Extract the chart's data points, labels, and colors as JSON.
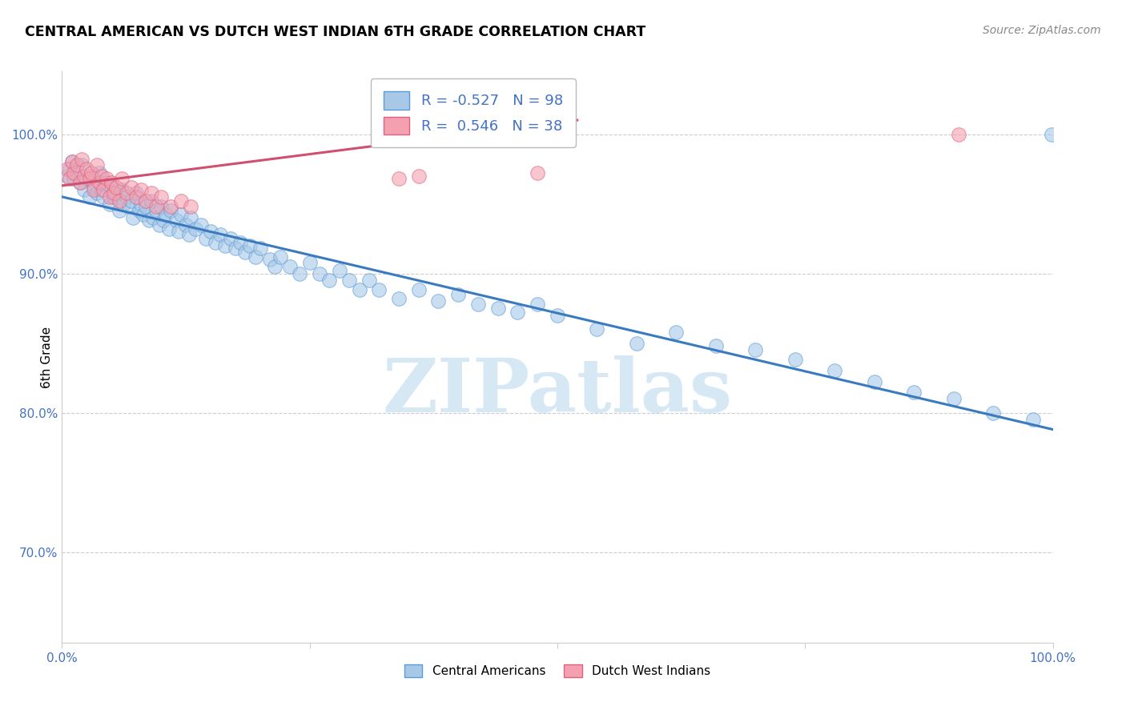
{
  "title": "CENTRAL AMERICAN VS DUTCH WEST INDIAN 6TH GRADE CORRELATION CHART",
  "source": "Source: ZipAtlas.com",
  "ylabel": "6th Grade",
  "y_ticks": [
    0.7,
    0.8,
    0.9,
    1.0
  ],
  "y_tick_labels": [
    "70.0%",
    "80.0%",
    "90.0%",
    "100.0%"
  ],
  "x_range": [
    0.0,
    1.0
  ],
  "y_range": [
    0.635,
    1.045
  ],
  "blue_r": "-0.527",
  "blue_n": "98",
  "pink_r": "0.546",
  "pink_n": "38",
  "blue_color": "#a8c8e8",
  "pink_color": "#f4a0b0",
  "blue_edge_color": "#5b9bd5",
  "pink_edge_color": "#e06080",
  "blue_line_color": "#3a7abf",
  "pink_line_color": "#d05070",
  "watermark_color": "#d0e4f4",
  "blue_trendline_x": [
    0.0,
    1.0
  ],
  "blue_trendline_y": [
    0.955,
    0.788
  ],
  "pink_trendline_x": [
    0.0,
    0.52
  ],
  "pink_trendline_y": [
    0.963,
    1.01
  ],
  "blue_points_x": [
    0.005,
    0.008,
    0.01,
    0.012,
    0.015,
    0.018,
    0.02,
    0.022,
    0.025,
    0.028,
    0.03,
    0.032,
    0.035,
    0.038,
    0.04,
    0.042,
    0.045,
    0.048,
    0.05,
    0.052,
    0.055,
    0.058,
    0.06,
    0.062,
    0.065,
    0.068,
    0.07,
    0.072,
    0.075,
    0.078,
    0.08,
    0.082,
    0.085,
    0.088,
    0.09,
    0.092,
    0.095,
    0.098,
    0.1,
    0.102,
    0.105,
    0.108,
    0.11,
    0.115,
    0.118,
    0.12,
    0.125,
    0.128,
    0.13,
    0.135,
    0.14,
    0.145,
    0.15,
    0.155,
    0.16,
    0.165,
    0.17,
    0.175,
    0.18,
    0.185,
    0.19,
    0.195,
    0.2,
    0.21,
    0.215,
    0.22,
    0.23,
    0.24,
    0.25,
    0.26,
    0.27,
    0.28,
    0.29,
    0.3,
    0.31,
    0.32,
    0.34,
    0.36,
    0.38,
    0.4,
    0.42,
    0.44,
    0.46,
    0.48,
    0.5,
    0.54,
    0.58,
    0.62,
    0.66,
    0.7,
    0.74,
    0.78,
    0.82,
    0.86,
    0.9,
    0.94,
    0.98,
    0.999
  ],
  "blue_points_y": [
    0.97,
    0.975,
    0.98,
    0.968,
    0.972,
    0.965,
    0.978,
    0.96,
    0.968,
    0.955,
    0.97,
    0.962,
    0.958,
    0.972,
    0.96,
    0.955,
    0.965,
    0.95,
    0.962,
    0.955,
    0.958,
    0.945,
    0.96,
    0.95,
    0.955,
    0.948,
    0.952,
    0.94,
    0.958,
    0.945,
    0.95,
    0.942,
    0.948,
    0.938,
    0.952,
    0.94,
    0.945,
    0.935,
    0.948,
    0.938,
    0.942,
    0.932,
    0.945,
    0.938,
    0.93,
    0.942,
    0.935,
    0.928,
    0.94,
    0.932,
    0.935,
    0.925,
    0.93,
    0.922,
    0.928,
    0.92,
    0.925,
    0.918,
    0.922,
    0.915,
    0.92,
    0.912,
    0.918,
    0.91,
    0.905,
    0.912,
    0.905,
    0.9,
    0.908,
    0.9,
    0.895,
    0.902,
    0.895,
    0.888,
    0.895,
    0.888,
    0.882,
    0.888,
    0.88,
    0.885,
    0.878,
    0.875,
    0.872,
    0.878,
    0.87,
    0.86,
    0.85,
    0.858,
    0.848,
    0.845,
    0.838,
    0.83,
    0.822,
    0.815,
    0.81,
    0.8,
    0.795,
    1.0
  ],
  "pink_points_x": [
    0.005,
    0.008,
    0.01,
    0.012,
    0.015,
    0.018,
    0.02,
    0.022,
    0.025,
    0.028,
    0.03,
    0.032,
    0.035,
    0.038,
    0.04,
    0.042,
    0.045,
    0.048,
    0.05,
    0.052,
    0.055,
    0.058,
    0.06,
    0.065,
    0.07,
    0.075,
    0.08,
    0.085,
    0.09,
    0.095,
    0.1,
    0.11,
    0.12,
    0.13,
    0.34,
    0.36,
    0.48,
    0.905
  ],
  "pink_points_y": [
    0.975,
    0.968,
    0.98,
    0.972,
    0.978,
    0.965,
    0.982,
    0.97,
    0.975,
    0.968,
    0.972,
    0.96,
    0.978,
    0.965,
    0.97,
    0.96,
    0.968,
    0.955,
    0.965,
    0.958,
    0.962,
    0.952,
    0.968,
    0.958,
    0.962,
    0.955,
    0.96,
    0.952,
    0.958,
    0.948,
    0.955,
    0.948,
    0.952,
    0.948,
    0.968,
    0.97,
    0.972,
    1.0
  ]
}
